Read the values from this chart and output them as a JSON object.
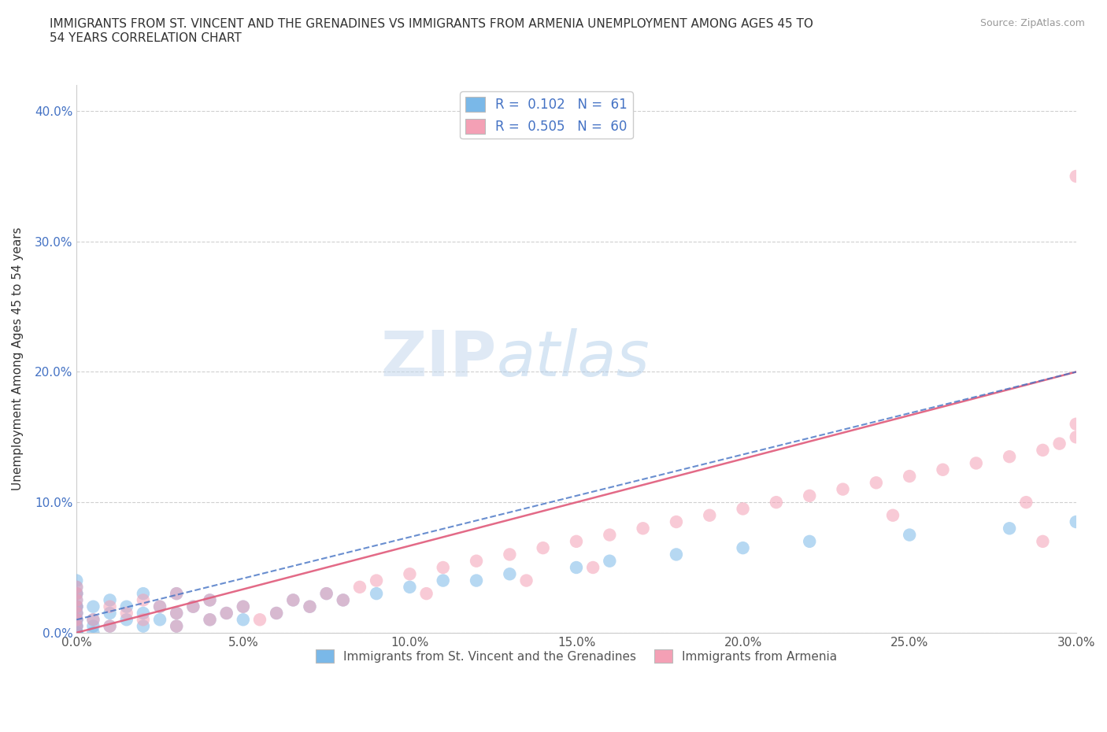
{
  "title": "IMMIGRANTS FROM ST. VINCENT AND THE GRENADINES VS IMMIGRANTS FROM ARMENIA UNEMPLOYMENT AMONG AGES 45 TO\n54 YEARS CORRELATION CHART",
  "source": "Source: ZipAtlas.com",
  "ylabel": "Unemployment Among Ages 45 to 54 years",
  "xmin": 0.0,
  "xmax": 0.3,
  "ymin": 0.0,
  "ymax": 0.42,
  "watermark_zip": "ZIP",
  "watermark_atlas": "atlas",
  "sv_color": "#7ab8e8",
  "arm_color": "#f4a0b5",
  "sv_line_color": "#4472c4",
  "arm_line_color": "#e05a7a",
  "sv_R": 0.102,
  "sv_N": 61,
  "arm_R": 0.505,
  "arm_N": 60,
  "background_color": "#ffffff",
  "grid_color": "#d0d0d0",
  "sv_x": [
    0.0,
    0.0,
    0.0,
    0.0,
    0.0,
    0.0,
    0.0,
    0.0,
    0.0,
    0.0,
    0.0,
    0.0,
    0.0,
    0.0,
    0.0,
    0.0,
    0.0,
    0.0,
    0.0,
    0.0,
    0.005,
    0.005,
    0.005,
    0.005,
    0.01,
    0.01,
    0.01,
    0.015,
    0.015,
    0.02,
    0.02,
    0.02,
    0.025,
    0.025,
    0.03,
    0.03,
    0.03,
    0.035,
    0.04,
    0.04,
    0.045,
    0.05,
    0.05,
    0.06,
    0.065,
    0.07,
    0.075,
    0.08,
    0.09,
    0.1,
    0.11,
    0.12,
    0.13,
    0.15,
    0.16,
    0.18,
    0.2,
    0.22,
    0.25,
    0.28,
    0.3
  ],
  "sv_y": [
    0.0,
    0.0,
    0.0,
    0.0,
    0.005,
    0.005,
    0.005,
    0.01,
    0.01,
    0.01,
    0.015,
    0.015,
    0.02,
    0.02,
    0.02,
    0.025,
    0.03,
    0.03,
    0.035,
    0.04,
    0.0,
    0.005,
    0.01,
    0.02,
    0.005,
    0.015,
    0.025,
    0.01,
    0.02,
    0.005,
    0.015,
    0.03,
    0.01,
    0.02,
    0.005,
    0.015,
    0.03,
    0.02,
    0.01,
    0.025,
    0.015,
    0.01,
    0.02,
    0.015,
    0.025,
    0.02,
    0.03,
    0.025,
    0.03,
    0.035,
    0.04,
    0.04,
    0.045,
    0.05,
    0.055,
    0.06,
    0.065,
    0.07,
    0.075,
    0.08,
    0.085
  ],
  "arm_x": [
    0.0,
    0.0,
    0.0,
    0.0,
    0.0,
    0.0,
    0.0,
    0.005,
    0.01,
    0.01,
    0.015,
    0.02,
    0.02,
    0.025,
    0.03,
    0.03,
    0.03,
    0.035,
    0.04,
    0.04,
    0.045,
    0.05,
    0.055,
    0.06,
    0.065,
    0.07,
    0.075,
    0.08,
    0.085,
    0.09,
    0.1,
    0.105,
    0.11,
    0.12,
    0.13,
    0.135,
    0.14,
    0.15,
    0.155,
    0.16,
    0.17,
    0.18,
    0.19,
    0.2,
    0.21,
    0.22,
    0.23,
    0.24,
    0.245,
    0.25,
    0.26,
    0.27,
    0.28,
    0.285,
    0.29,
    0.29,
    0.295,
    0.3,
    0.3,
    0.3
  ],
  "arm_y": [
    0.005,
    0.01,
    0.015,
    0.02,
    0.025,
    0.03,
    0.035,
    0.01,
    0.005,
    0.02,
    0.015,
    0.01,
    0.025,
    0.02,
    0.005,
    0.015,
    0.03,
    0.02,
    0.01,
    0.025,
    0.015,
    0.02,
    0.01,
    0.015,
    0.025,
    0.02,
    0.03,
    0.025,
    0.035,
    0.04,
    0.045,
    0.03,
    0.05,
    0.055,
    0.06,
    0.04,
    0.065,
    0.07,
    0.05,
    0.075,
    0.08,
    0.085,
    0.09,
    0.095,
    0.1,
    0.105,
    0.11,
    0.115,
    0.09,
    0.12,
    0.125,
    0.13,
    0.135,
    0.1,
    0.14,
    0.07,
    0.145,
    0.15,
    0.16,
    0.35
  ],
  "bottom_legend": [
    {
      "label": "Immigrants from St. Vincent and the Grenadines",
      "color": "#7ab8e8"
    },
    {
      "label": "Immigrants from Armenia",
      "color": "#f4a0b5"
    }
  ]
}
